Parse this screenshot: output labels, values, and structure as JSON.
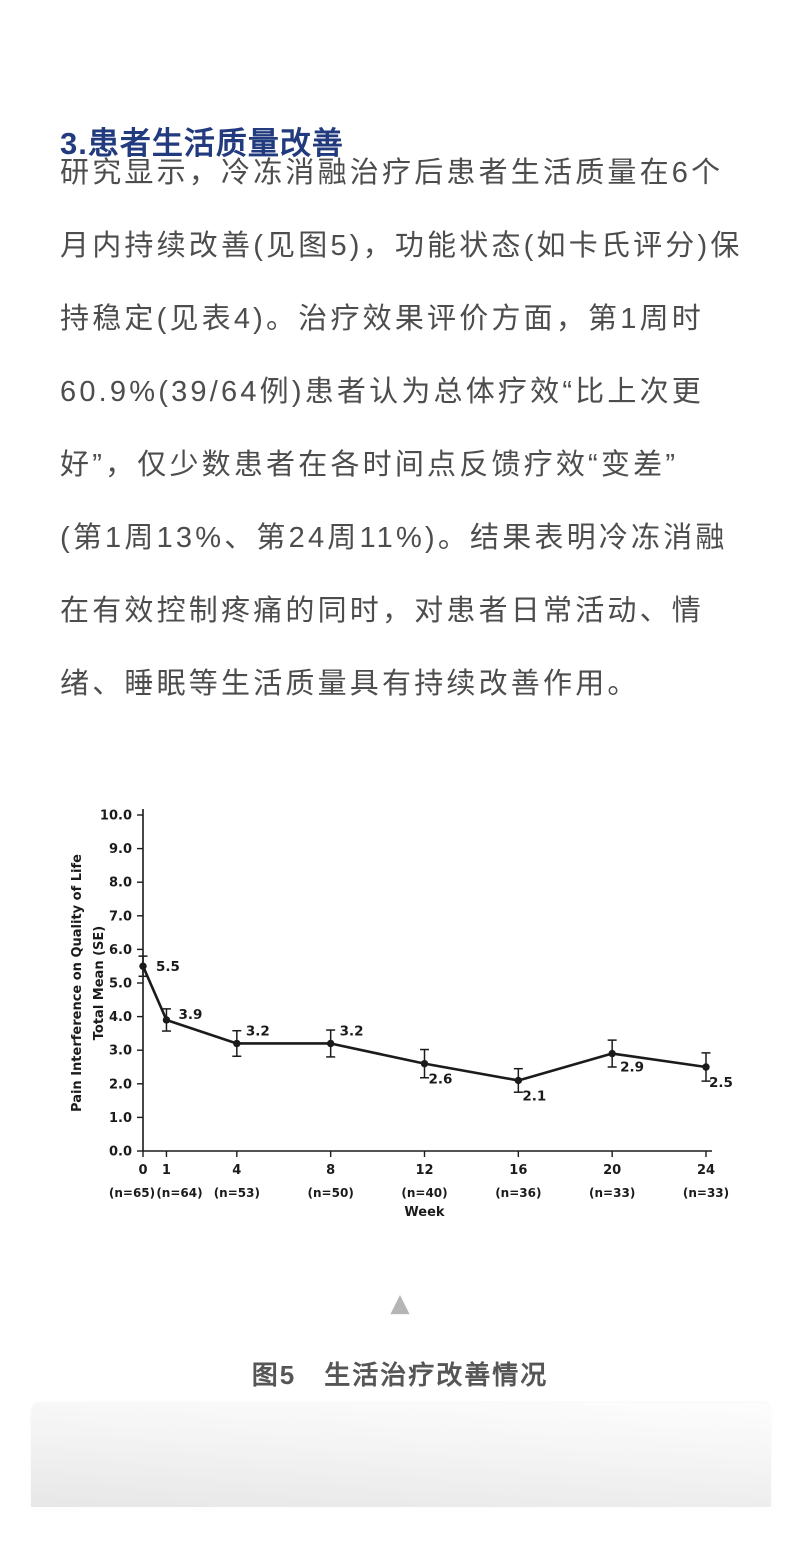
{
  "page": {
    "heading": "3.患者生活质量改善",
    "paragraph": "研究显示，冷冻消融治疗后患者生活质量在6个\n月内持续改善(见图5)，功能状态(如卡氏评分)保\n持稳定(见表4)。治疗效果评价方面，第1周时\n60.9%(39/64例)患者认为总体疗效“比上次更\n好”，仅少数患者在各时间点反馈疗效“变差”\n(第1周13%、第24周11%)。结果表明冷冻消融\n在有效控制疼痛的同时，对患者日常活动、情\n绪、睡眠等生活质量具有持续改善作用。",
    "figure_caption": "图5　生活治疗改善情况"
  },
  "icons": {
    "collapse_triangle": "▲"
  },
  "colors": {
    "heading": "#223a7e",
    "body_text": "#4d4d4d",
    "caption": "#565656",
    "triangle": "#b5b5b5",
    "chart_ink": "#1b1b1b"
  },
  "chart_data": {
    "type": "line",
    "title": "",
    "xlabel": "Week",
    "ylabel_lines": [
      "Pain Interference on Quality of Life",
      "Total Mean (SE)"
    ],
    "x": [
      0,
      1,
      4,
      8,
      12,
      16,
      20,
      24
    ],
    "values": [
      5.5,
      3.9,
      3.2,
      3.2,
      2.6,
      2.1,
      2.9,
      2.5
    ],
    "se": [
      0.3,
      0.33,
      0.38,
      0.4,
      0.42,
      0.35,
      0.4,
      0.42
    ],
    "point_labels": [
      "5.5",
      "3.9",
      "3.2",
      "3.2",
      "2.6",
      "2.1",
      "2.9",
      "2.5"
    ],
    "n_labels": [
      "(n=65)",
      "(n=64)",
      "(n=53)",
      "(n=50)",
      "(n=40)",
      "(n=36)",
      "(n=33)",
      "(n=33)"
    ],
    "ylim": [
      0,
      10
    ],
    "ytick_step": 1,
    "error_bars": true,
    "grid": false,
    "legend": null
  }
}
